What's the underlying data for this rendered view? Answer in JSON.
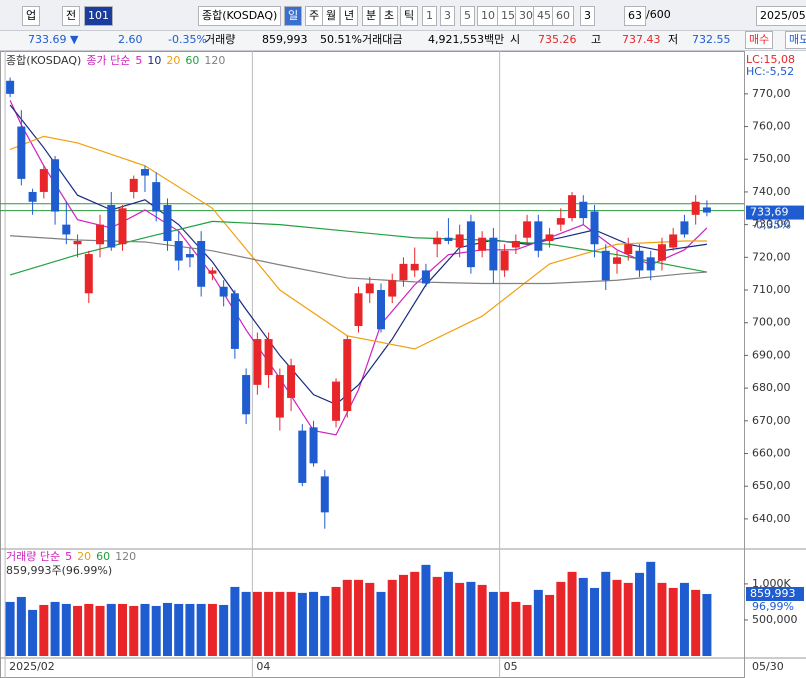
{
  "toolbar": {
    "items": [
      "업",
      "전",
      "101",
      "종합(KOSDAQ)",
      "일",
      "주",
      "월",
      "년",
      "분",
      "초",
      "틱",
      "1",
      "3",
      "5",
      "10",
      "15",
      "30",
      "45",
      "60",
      "3",
      "63",
      "/600",
      "2025/05/"
    ]
  },
  "info": {
    "items": [
      "733.69 ▼",
      "2.60",
      "-0.35%",
      "거래량",
      "859,993",
      "50.51%",
      "거래대금",
      "4,921,553백만",
      "시",
      "735.26",
      "고",
      "737.43",
      "저",
      "732.55",
      "매수",
      "매도"
    ]
  },
  "legend": {
    "price": [
      "종합(KOSDAQ)",
      "종가 단순",
      "5",
      "10",
      "20",
      "60",
      "120"
    ],
    "volume": [
      "거래량 단순",
      "5",
      "20",
      "60",
      "120"
    ],
    "volume_info": "859,993주(96.99%)"
  },
  "right_labels": {
    "lc": "LC:15,08",
    "hc": "HC:-5,52",
    "last": "733,69",
    "change": "-0,35%",
    "vol_last": "859,993",
    "vol_pct": "96,99%",
    "date_end": "05/30"
  },
  "chart_data": {
    "type": "candlestick",
    "xlim": [
      -0.9,
      65.3
    ],
    "ylim": [
      631.1,
      782.8
    ],
    "vol_ylim": [
      0,
      1470000
    ],
    "up_color": "#e8262a",
    "down_color": "#1e5cd0",
    "open": [
      774,
      760,
      740,
      740,
      750,
      730,
      724,
      709,
      724,
      736,
      724,
      740,
      747,
      743,
      736,
      725,
      721,
      725,
      715,
      711,
      709,
      684,
      681,
      684,
      671,
      677,
      667,
      668,
      653,
      670,
      673,
      699,
      709,
      710,
      708,
      713,
      716,
      716,
      724,
      726,
      723,
      731,
      722,
      726,
      716,
      723,
      726,
      731,
      725,
      730,
      732,
      737,
      734,
      722,
      718,
      721,
      722,
      720,
      719,
      723,
      731,
      733,
      735.26
    ],
    "high": [
      775,
      765,
      741,
      748,
      751,
      737,
      727,
      722,
      733,
      740,
      736,
      745,
      748,
      746,
      738,
      728,
      723,
      728,
      717,
      713,
      710,
      686,
      697,
      697,
      686,
      689,
      669,
      670,
      655,
      683,
      696,
      711,
      714,
      712,
      715,
      720,
      723,
      718,
      728,
      732,
      730,
      733,
      728,
      729,
      724,
      727,
      733,
      733,
      729,
      735,
      740,
      739,
      736,
      724,
      722,
      726,
      724,
      722,
      726,
      729,
      733,
      739,
      737.43
    ],
    "low": [
      769,
      742,
      733,
      738,
      730,
      724,
      720,
      706,
      720,
      722,
      722,
      738,
      740,
      731,
      722,
      716,
      717,
      708,
      713,
      705,
      689,
      669,
      678,
      680,
      667,
      673,
      650,
      656,
      637,
      668,
      671,
      697,
      706,
      697,
      706,
      711,
      714,
      711,
      720,
      724,
      720,
      715,
      720,
      712,
      714,
      721,
      724,
      720,
      723,
      728,
      731,
      730,
      720,
      710,
      715,
      719,
      714,
      713,
      716,
      722,
      726,
      730,
      732.55
    ],
    "close": [
      770,
      744,
      737,
      747,
      734,
      727,
      725,
      721,
      730,
      723,
      735,
      744,
      745,
      734,
      725,
      719,
      720,
      711,
      716,
      708,
      692,
      672,
      695,
      695,
      684,
      687,
      651,
      657,
      642,
      682,
      695,
      709,
      712,
      698,
      713,
      718,
      718,
      712,
      726,
      725,
      727,
      717,
      726,
      716,
      722,
      725,
      731,
      722,
      727,
      732,
      739,
      732,
      724,
      713,
      720,
      724,
      716,
      716,
      724,
      727,
      727,
      737,
      733.69
    ],
    "volume": [
      750000,
      819000,
      639000,
      708000,
      750000,
      722000,
      694000,
      722000,
      694000,
      722000,
      722000,
      694000,
      722000,
      694000,
      736000,
      722000,
      722000,
      722000,
      722000,
      708000,
      958000,
      889000,
      889000,
      889000,
      889000,
      889000,
      875000,
      889000,
      833000,
      958000,
      1056000,
      1056000,
      1014000,
      889000,
      1056000,
      1125000,
      1167000,
      1264000,
      1097000,
      1167000,
      1014000,
      1028000,
      986000,
      889000,
      889000,
      750000,
      708000,
      917000,
      847000,
      1028000,
      1167000,
      1083000,
      944000,
      1167000,
      1056000,
      1014000,
      1153000,
      1306000,
      1014000,
      944000,
      1014000,
      917000,
      859993
    ],
    "ma": [
      {
        "color": "#d020c0",
        "x": [
          0,
          1,
          3,
          6,
          9,
          12,
          15,
          18,
          21,
          24,
          27,
          29,
          31,
          33,
          36,
          39,
          42,
          45,
          48,
          51,
          54,
          57,
          60,
          62
        ],
        "values": [
          768,
          760.5,
          748,
          731.5,
          729,
          734.5,
          728,
          714.6,
          697.8,
          683,
          667,
          665.7,
          679.5,
          699.5,
          711.6,
          720.8,
          722.3,
          722.3,
          726,
          730,
          722.3,
          717.7,
          722.3,
          729
        ]
      },
      {
        "color": "#1a2a80",
        "x": [
          0,
          3,
          6,
          9,
          12,
          15,
          18,
          21,
          24,
          27,
          29,
          31,
          34,
          37,
          40,
          43,
          46,
          49,
          52,
          55,
          58,
          60,
          62
        ],
        "values": [
          766.6,
          753.5,
          739,
          734.5,
          737.6,
          730,
          718.6,
          704,
          690,
          678,
          675,
          681,
          695,
          711.6,
          723,
          725.3,
          724,
          726,
          728.4,
          724,
          722,
          723,
          724
        ]
      },
      {
        "color": "#f0a010",
        "x": [
          0,
          3,
          6,
          12,
          18,
          24,
          30,
          36,
          42,
          48,
          54,
          60,
          62
        ],
        "values": [
          753,
          757,
          755,
          748,
          735,
          710,
          696,
          692,
          702,
          718,
          724,
          725,
          725
        ]
      },
      {
        "color": "#20a040",
        "x": [
          0,
          6,
          12,
          18,
          24,
          30,
          36,
          42,
          48,
          54,
          60,
          62
        ],
        "values": [
          714.6,
          720.8,
          726,
          731,
          730,
          728,
          726,
          725.3,
          724,
          720.8,
          716.8,
          715.5
        ]
      },
      {
        "color": "#808080",
        "x": [
          0,
          6,
          12,
          18,
          24,
          30,
          36,
          42,
          48,
          54,
          60,
          62
        ],
        "values": [
          726.6,
          725.3,
          724.7,
          722,
          717.7,
          713.7,
          712.5,
          712,
          712,
          713,
          715,
          715.5
        ]
      }
    ],
    "hlines": [
      736.4,
      734.3
    ],
    "hline_color": "#2a9a40",
    "yticks": [
      {
        "value": 770,
        "label": "770,00"
      },
      {
        "value": 760,
        "label": "760,00"
      },
      {
        "value": 750,
        "label": "750,00"
      },
      {
        "value": 740,
        "label": "740,00"
      },
      {
        "value": 730,
        "label": "730,00"
      },
      {
        "value": 720,
        "label": "720,00"
      },
      {
        "value": 710,
        "label": "710,00"
      },
      {
        "value": 700,
        "label": "700,00"
      },
      {
        "value": 690,
        "label": "690,00"
      },
      {
        "value": 680,
        "label": "680,00"
      },
      {
        "value": 670,
        "label": "670,00"
      },
      {
        "value": 660,
        "label": "660,00"
      },
      {
        "value": 650,
        "label": "650,00"
      },
      {
        "value": 640,
        "label": "640,00"
      }
    ],
    "vol_yticks": [
      {
        "value": 1000000,
        "label": "1,000K"
      },
      {
        "value": 500000,
        "label": "500,000"
      }
    ],
    "xticks": [
      {
        "value": 0,
        "label": "2025/02"
      },
      {
        "value": 22,
        "label": "04"
      },
      {
        "value": 44,
        "label": "05"
      }
    ]
  }
}
